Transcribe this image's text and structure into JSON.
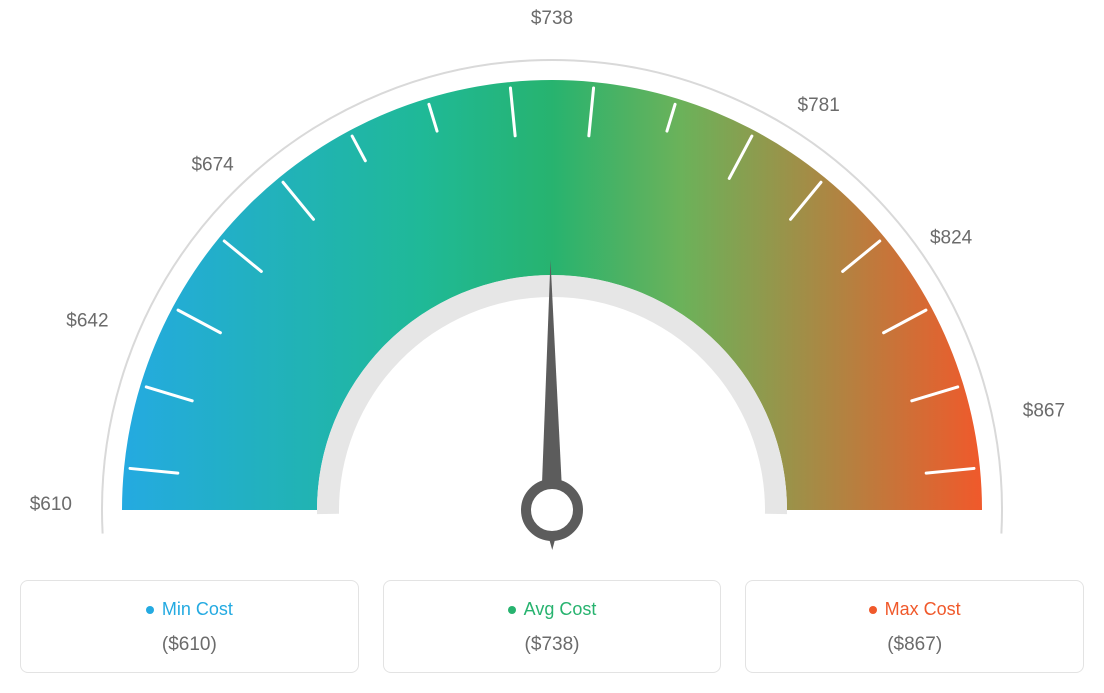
{
  "gauge": {
    "type": "gauge",
    "min_value": 610,
    "max_value": 867,
    "avg_value": 738,
    "needle_value": 738,
    "ticks": [
      {
        "value": 610,
        "label": "$610",
        "angle_deg": 180
      },
      {
        "value": 642,
        "label": "$642",
        "angle_deg": 157.5
      },
      {
        "value": 674,
        "label": "$674",
        "angle_deg": 135
      },
      {
        "value": 738,
        "label": "$738",
        "angle_deg": 90
      },
      {
        "value": 781,
        "label": "$781",
        "angle_deg": 56.25
      },
      {
        "value": 824,
        "label": "$824",
        "angle_deg": 33.75
      },
      {
        "value": 867,
        "label": "$867",
        "angle_deg": 11.25
      }
    ],
    "minor_tick_count": 16,
    "arc": {
      "outer_radius": 430,
      "inner_radius": 235,
      "outline_radius": 450,
      "colors": {
        "start": "#24aae1",
        "mid": "#27b36f",
        "end": "#f0592b"
      },
      "outline_color": "#d9d9d9",
      "inner_ring_color": "#e6e6e6",
      "inner_ring_width": 22
    },
    "tick_style": {
      "major_color": "#ffffff",
      "major_width": 3,
      "major_length": 48,
      "minor_color": "#ffffff",
      "minor_width": 3,
      "minor_length": 28,
      "label_fontsize": 19,
      "label_color": "#6b6b6b"
    },
    "needle": {
      "color": "#5c5c5c",
      "length": 250,
      "base_width": 22,
      "hub_outer": 26,
      "hub_inner": 14,
      "hub_fill": "#ffffff"
    },
    "background_color": "#ffffff"
  },
  "legend": {
    "cards": [
      {
        "key": "min",
        "label": "Min Cost",
        "value": "($610)",
        "color": "#24aae1"
      },
      {
        "key": "avg",
        "label": "Avg Cost",
        "value": "($738)",
        "color": "#27b36f"
      },
      {
        "key": "max",
        "label": "Max Cost",
        "value": "($867)",
        "color": "#f0592b"
      }
    ],
    "card_border_color": "#e3e3e3",
    "card_border_radius": 8,
    "label_fontsize": 18,
    "value_fontsize": 19,
    "value_color": "#6b6b6b"
  }
}
